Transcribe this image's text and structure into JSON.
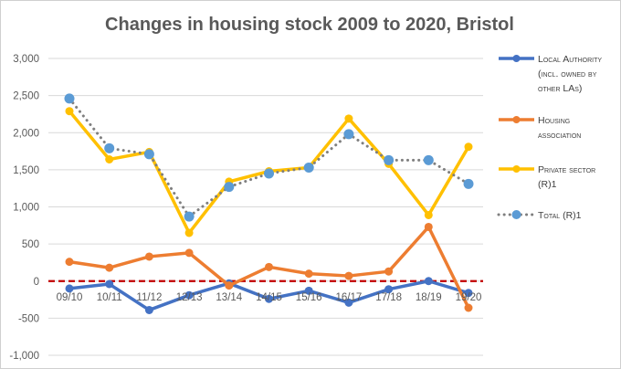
{
  "chart_data": {
    "type": "line",
    "title": "Changes in housing stock 2009 to 2020, Bristol",
    "categories": [
      "09/10",
      "10/11",
      "11/12",
      "12/13",
      "13/14",
      "14/15",
      "15/16",
      "16/17",
      "17/18",
      "18/19",
      "19/20"
    ],
    "ylim": [
      -1000,
      3000
    ],
    "yticks": [
      -1000,
      -500,
      0,
      500,
      1000,
      1500,
      2000,
      2500,
      3000
    ],
    "ytick_labels": [
      "-1,000",
      "-500",
      "0",
      "500",
      "1,000",
      "1,500",
      "2,000",
      "2,500",
      "3,000"
    ],
    "grid": true,
    "legend_position": "right",
    "series": [
      {
        "name": "Local Authority (incl. owned by other LAs)",
        "legend_lines": [
          "Local Authority",
          "(incl. owned by",
          "other LAs)"
        ],
        "color": "#4472c4",
        "style": "solid-marker",
        "values": [
          -100,
          -40,
          -390,
          -190,
          -30,
          -240,
          -130,
          -290,
          -110,
          0,
          -160
        ]
      },
      {
        "name": "Housing association",
        "legend_lines": [
          "Housing",
          "association"
        ],
        "color": "#ed7d31",
        "style": "solid-marker",
        "values": [
          260,
          180,
          330,
          380,
          -60,
          190,
          100,
          70,
          130,
          730,
          -360
        ]
      },
      {
        "name": "Private sector (R)1",
        "legend_lines": [
          "Private sector",
          "(R)1"
        ],
        "color": "#ffc000",
        "style": "solid-marker",
        "values": [
          2290,
          1640,
          1740,
          650,
          1340,
          1480,
          1530,
          2190,
          1580,
          890,
          1810
        ]
      },
      {
        "name": "Total (R)1",
        "legend_lines": [
          "Total (R)1"
        ],
        "color": "#5b9bd5",
        "line_color": "#7f7f7f",
        "style": "dotted-marker",
        "values": [
          2460,
          1790,
          1710,
          870,
          1270,
          1450,
          1530,
          1980,
          1630,
          1630,
          1310
        ]
      }
    ],
    "reference_line": {
      "value": 0,
      "color": "#c00000",
      "style": "dashed"
    }
  }
}
